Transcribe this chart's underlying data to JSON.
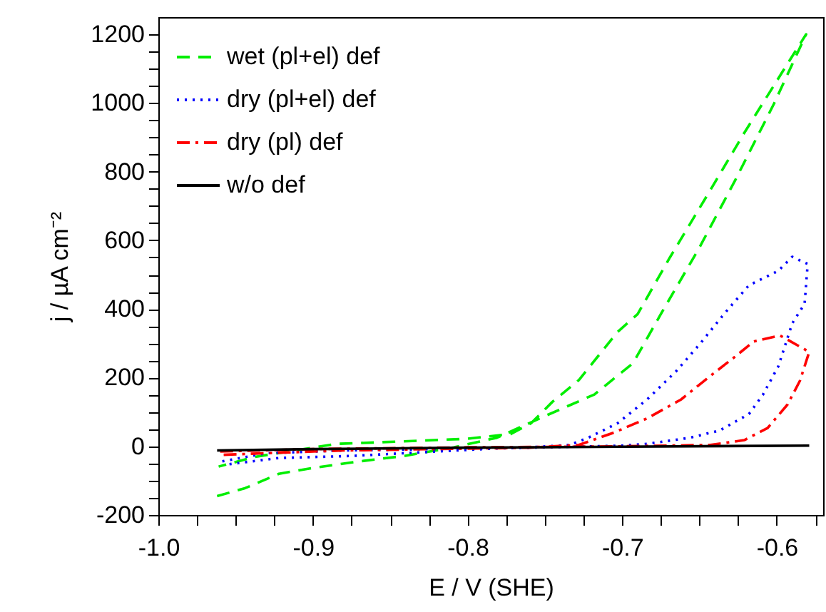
{
  "chart_data": {
    "type": "line",
    "xlabel": "E / V (SHE)",
    "ylabel": "j / µA cm⁻²",
    "xlim": [
      -1.0,
      -0.57
    ],
    "ylim": [
      -200,
      1250
    ],
    "xticks": [
      {
        "value": -1.0,
        "label": "-1.0"
      },
      {
        "value": -0.975,
        "label": null
      },
      {
        "value": -0.95,
        "label": null
      },
      {
        "value": -0.925,
        "label": null
      },
      {
        "value": -0.9,
        "label": "-0.9"
      },
      {
        "value": -0.875,
        "label": null
      },
      {
        "value": -0.85,
        "label": null
      },
      {
        "value": -0.825,
        "label": null
      },
      {
        "value": -0.8,
        "label": "-0.8"
      },
      {
        "value": -0.775,
        "label": null
      },
      {
        "value": -0.75,
        "label": null
      },
      {
        "value": -0.725,
        "label": null
      },
      {
        "value": -0.7,
        "label": "-0.7"
      },
      {
        "value": -0.675,
        "label": null
      },
      {
        "value": -0.65,
        "label": null
      },
      {
        "value": -0.625,
        "label": null
      },
      {
        "value": -0.6,
        "label": "-0.6"
      },
      {
        "value": -0.575,
        "label": null
      }
    ],
    "yticks": [
      -200,
      {
        "value": -150,
        "label": null
      },
      {
        "value": -100,
        "label": null
      },
      {
        "value": -50,
        "label": null
      },
      0,
      {
        "value": 50,
        "label": null
      },
      {
        "value": 100,
        "label": null
      },
      {
        "value": 150,
        "label": null
      },
      200,
      {
        "value": 250,
        "label": null
      },
      {
        "value": 300,
        "label": null
      },
      {
        "value": 350,
        "label": null
      },
      400,
      {
        "value": 450,
        "label": null
      },
      {
        "value": 500,
        "label": null
      },
      {
        "value": 550,
        "label": null
      },
      600,
      {
        "value": 650,
        "label": null
      },
      {
        "value": 700,
        "label": null
      },
      {
        "value": 750,
        "label": null
      },
      800,
      {
        "value": 850,
        "label": null
      },
      {
        "value": 900,
        "label": null
      },
      {
        "value": 950,
        "label": null
      },
      1000,
      {
        "value": 1050,
        "label": null
      },
      {
        "value": 1100,
        "label": null
      },
      {
        "value": 1150,
        "label": null
      },
      1200
    ],
    "legend": "top left",
    "grid": false,
    "series": [
      {
        "name": "wet (pl+el) def",
        "color": "#00ee00",
        "line_style": "dashed",
        "x": [
          -0.962,
          -0.944,
          -0.922,
          -0.9,
          -0.872,
          -0.841,
          -0.809,
          -0.781,
          -0.75,
          -0.718,
          -0.693,
          -0.675,
          -0.65,
          -0.627,
          -0.602,
          -0.581,
          -0.596,
          -0.621,
          -0.643,
          -0.669,
          -0.69,
          -0.703,
          -0.728,
          -0.745,
          -0.759,
          -0.772,
          -0.8,
          -0.844,
          -0.885,
          -0.938,
          -0.961
        ],
        "values": [
          -145,
          -122,
          -80,
          -63,
          -45,
          -28,
          -3,
          25,
          88,
          151,
          242,
          385,
          579,
          774,
          996,
          1200,
          1093,
          913,
          746,
          551,
          385,
          333,
          193,
          130,
          67,
          36,
          22,
          14,
          7,
          -31,
          -59
        ]
      },
      {
        "name": "dry (pl+el) def",
        "color": "#0000ff",
        "line_style": "dotted",
        "x": [
          -0.954,
          -0.922,
          -0.875,
          -0.828,
          -0.781,
          -0.74,
          -0.7,
          -0.684,
          -0.656,
          -0.637,
          -0.618,
          -0.609,
          -0.599,
          -0.59,
          -0.582,
          -0.58,
          -0.59,
          -0.599,
          -0.618,
          -0.634,
          -0.649,
          -0.665,
          -0.684,
          -0.703,
          -0.722,
          -0.734,
          -0.76,
          -0.82,
          -0.88,
          -0.93,
          -0.96
        ],
        "values": [
          -52,
          -34,
          -28,
          -17,
          -6,
          -2,
          2,
          7,
          25,
          46,
          94,
          150,
          233,
          358,
          415,
          531,
          552,
          511,
          469,
          386,
          302,
          219,
          136,
          67,
          25,
          4,
          -3,
          -8,
          -12,
          -20,
          -45
        ]
      },
      {
        "name": "dry (pl) def",
        "color": "#ff0000",
        "line_style": "dashdot",
        "x": [
          -0.96,
          -0.9,
          -0.8,
          -0.7,
          -0.643,
          -0.621,
          -0.606,
          -0.593,
          -0.585,
          -0.579,
          -0.598,
          -0.615,
          -0.627,
          -0.643,
          -0.662,
          -0.684,
          -0.706,
          -0.728,
          -0.76,
          -0.82,
          -0.88,
          -0.93,
          -0.96
        ],
        "values": [
          -15,
          -8,
          -3,
          0,
          4,
          18,
          53,
          122,
          191,
          275,
          323,
          305,
          261,
          205,
          136,
          81,
          39,
          4,
          -4,
          -8,
          -12,
          -20,
          -25
        ]
      },
      {
        "name": "w/o def",
        "color": "#000000",
        "line_style": "solid",
        "x": [
          -0.962,
          -0.9,
          -0.8,
          -0.7,
          -0.579
        ],
        "values": [
          -12,
          -8,
          -4,
          -1,
          2
        ]
      }
    ]
  }
}
